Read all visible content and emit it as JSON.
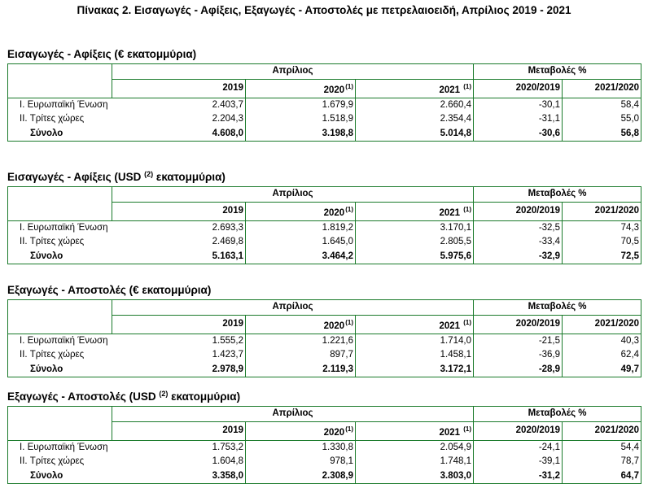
{
  "page_title": "Πίνακας 2. Εισαγωγές - Αφίξεις, Εξαγωγές - Αποστολές με πετρελαιοειδή, Απρίλιος 2019 - 2021",
  "headers": {
    "month": "Απρίλιος",
    "changes": "Μεταβολές %",
    "y2019": "2019",
    "y2020": "2020",
    "y2020_note": "(1)",
    "y2021": "2021",
    "y2021_note": "(1)",
    "ch1": "2020/2019",
    "ch2": "2021/2020"
  },
  "sections": [
    {
      "title_a": "Εισαγωγές - Αφίξεις  (€ εκατομμύρια)",
      "title_sup": "",
      "title_b": "",
      "rows": [
        {
          "label": "I. Ευρωπαϊκή Ένωση",
          "v2019": "2.403,7",
          "v2020": "1.679,9",
          "v2021": "2.660,4",
          "c1": "-30,1",
          "c2": "58,4"
        },
        {
          "label": "II. Τρίτες χώρες",
          "v2019": "2.204,3",
          "v2020": "1.518,9",
          "v2021": "2.354,4",
          "c1": "-31,1",
          "c2": "55,0"
        },
        {
          "label": "Σύνολο",
          "v2019": "4.608,0",
          "v2020": "3.198,8",
          "v2021": "5.014,8",
          "c1": "-30,6",
          "c2": "56,8"
        }
      ]
    },
    {
      "title_a": "Εισαγωγές - Αφίξεις (USD ",
      "title_sup": "(2)",
      "title_b": " εκατομμύρια)",
      "rows": [
        {
          "label": "I. Ευρωπαϊκή Ένωση",
          "v2019": "2.693,3",
          "v2020": "1.819,2",
          "v2021": "3.170,1",
          "c1": "-32,5",
          "c2": "74,3"
        },
        {
          "label": "II. Τρίτες χώρες",
          "v2019": "2.469,8",
          "v2020": "1.645,0",
          "v2021": "2.805,5",
          "c1": "-33,4",
          "c2": "70,5"
        },
        {
          "label": "Σύνολο",
          "v2019": "5.163,1",
          "v2020": "3.464,2",
          "v2021": "5.975,6",
          "c1": "-32,9",
          "c2": "72,5"
        }
      ]
    },
    {
      "title_a": "Εξαγωγές - Αποστολές  (€ εκατομμύρια)",
      "title_sup": "",
      "title_b": "",
      "rows": [
        {
          "label": "I. Ευρωπαϊκή Ένωση",
          "v2019": "1.555,2",
          "v2020": "1.221,6",
          "v2021": "1.714,0",
          "c1": "-21,5",
          "c2": "40,3"
        },
        {
          "label": "II. Τρίτες χώρες",
          "v2019": "1.423,7",
          "v2020": "897,7",
          "v2021": "1.458,1",
          "c1": "-36,9",
          "c2": "62,4"
        },
        {
          "label": "Σύνολο",
          "v2019": "2.978,9",
          "v2020": "2.119,3",
          "v2021": "3.172,1",
          "c1": "-28,9",
          "c2": "49,7"
        }
      ]
    },
    {
      "title_a": "Εξαγωγές - Αποστολές (USD ",
      "title_sup": "(2)",
      "title_b": " εκατομμύρια)",
      "rows": [
        {
          "label": "I. Ευρωπαϊκή Ένωση",
          "v2019": "1.753,2",
          "v2020": "1.330,8",
          "v2021": "2.054,9",
          "c1": "-24,1",
          "c2": "54,4"
        },
        {
          "label": "II. Τρίτες χώρες",
          "v2019": "1.604,8",
          "v2020": "978,1",
          "v2021": "1.748,1",
          "c1": "-39,1",
          "c2": "78,7"
        },
        {
          "label": "Σύνολο",
          "v2019": "3.358,0",
          "v2020": "2.308,9",
          "v2021": "3.803,0",
          "c1": "-31,2",
          "c2": "64,7"
        }
      ]
    }
  ]
}
